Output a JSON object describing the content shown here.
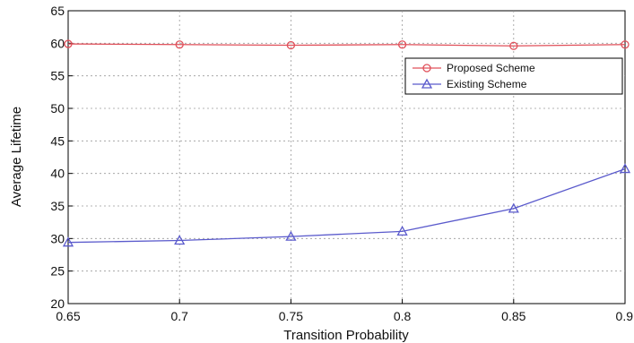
{
  "chart_data": {
    "type": "line",
    "title": "",
    "xlabel": "Transition Probability",
    "ylabel": "Average Lifetime",
    "x": [
      0.65,
      0.7,
      0.75,
      0.8,
      0.85,
      0.9
    ],
    "xticks": [
      "0.65",
      "0.7",
      "0.75",
      "0.8",
      "0.85",
      "0.9"
    ],
    "xlim": [
      0.65,
      0.9
    ],
    "ylim": [
      20,
      65
    ],
    "yticks": [
      "20",
      "25",
      "30",
      "35",
      "40",
      "45",
      "50",
      "55",
      "60",
      "65"
    ],
    "grid": true,
    "legend_position": "top-right",
    "series": [
      {
        "name": "Proposed Scheme",
        "marker": "circle",
        "color": "#e0505a",
        "values": [
          59.9,
          59.8,
          59.7,
          59.8,
          59.6,
          59.8
        ]
      },
      {
        "name": "Existing Scheme",
        "marker": "triangle",
        "color": "#5a5acc",
        "values": [
          29.4,
          29.7,
          30.3,
          31.1,
          34.6,
          40.7
        ]
      }
    ]
  }
}
